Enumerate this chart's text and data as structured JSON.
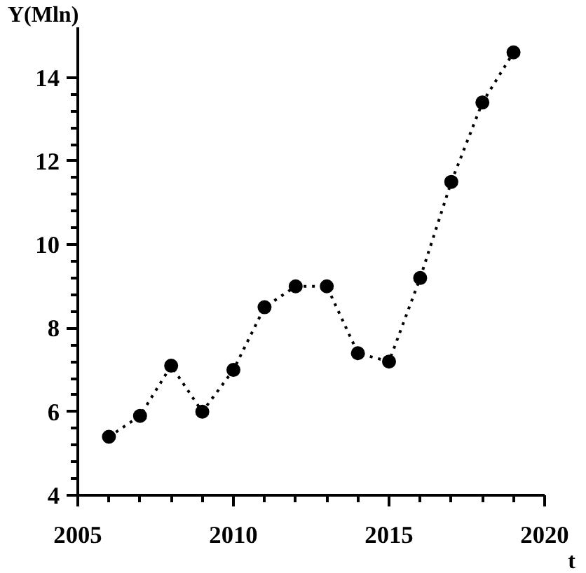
{
  "chart_data": {
    "type": "line",
    "xlabel": "t",
    "ylabel": "Y(Mln)",
    "x": [
      2006,
      2007,
      2008,
      2009,
      2010,
      2011,
      2012,
      2013,
      2014,
      2015,
      2016,
      2017,
      2018,
      2019
    ],
    "series": [
      {
        "color": "#000000",
        "values": [
          5.4,
          5.9,
          7.1,
          6.0,
          7.0,
          8.5,
          9.0,
          9.0,
          7.4,
          7.2,
          9.2,
          11.5,
          13.4,
          14.6
        ]
      }
    ],
    "xlim": [
      2005,
      2020
    ],
    "ylim": [
      4,
      15.2
    ],
    "xticks": [
      2005,
      2010,
      2015,
      2020
    ],
    "yticks": [
      4,
      6,
      8,
      10,
      12,
      14
    ],
    "grid": false,
    "marker": "circle",
    "line_style": "dotted"
  }
}
